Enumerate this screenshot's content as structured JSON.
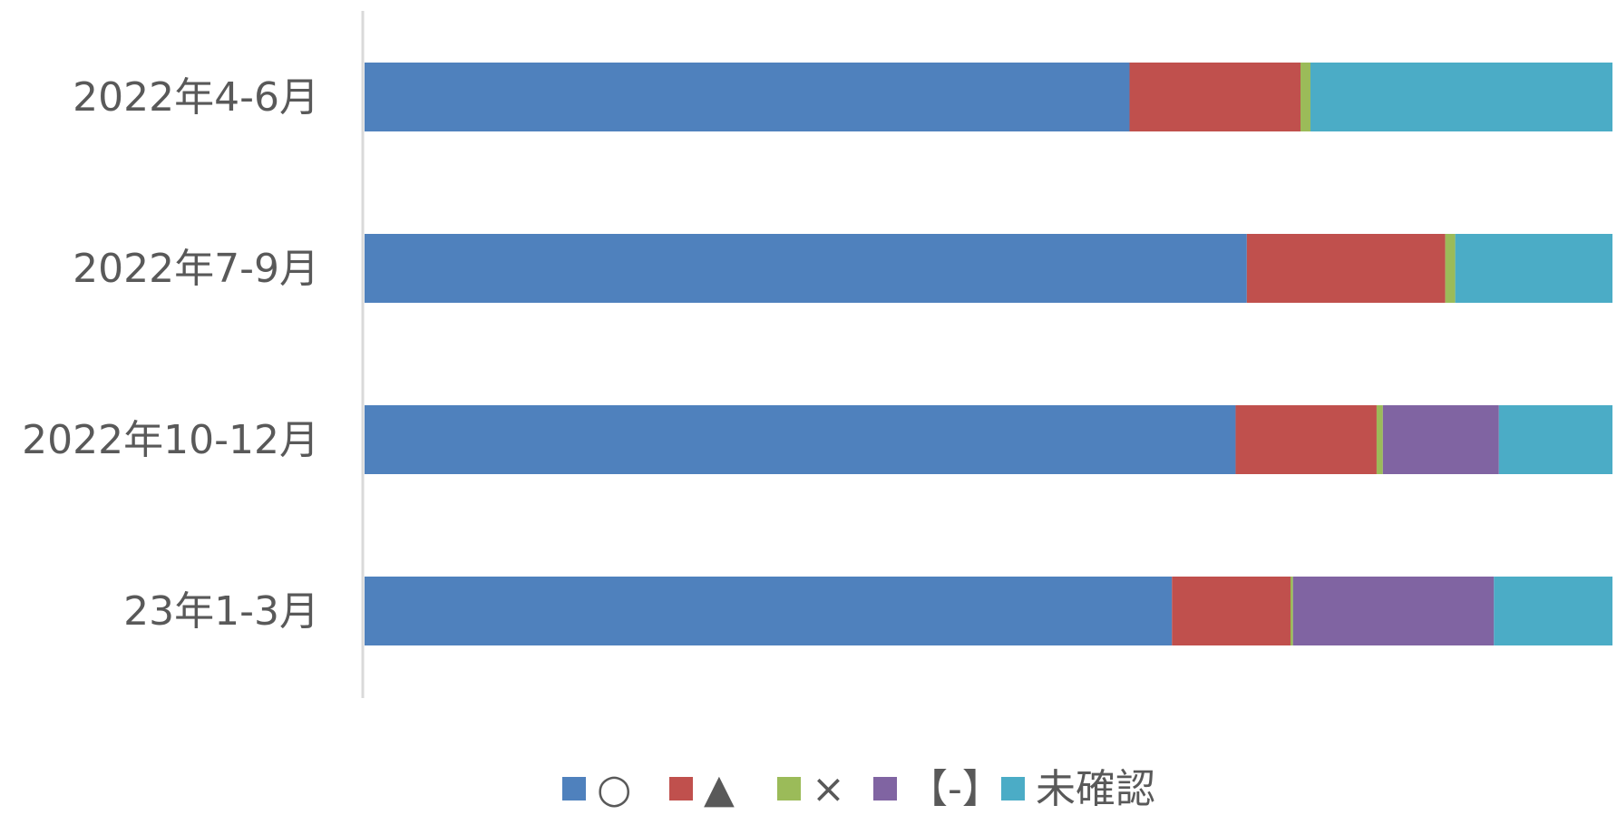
{
  "chart_data": {
    "type": "bar",
    "orientation": "horizontal",
    "stacked": "100%",
    "categories": [
      "2022年4-6月",
      "2022年7-9月",
      "2022年10-12月",
      "23年1-3月"
    ],
    "series": [
      {
        "name": "○",
        "color": "#4F81BD",
        "values": [
          61.3,
          70.7,
          69.8,
          64.7
        ]
      },
      {
        "name": "▲",
        "color": "#C0504D",
        "values": [
          13.7,
          15.9,
          11.3,
          9.5
        ]
      },
      {
        "name": "×",
        "color": "#9BBB59",
        "values": [
          0.8,
          0.8,
          0.5,
          0.2
        ]
      },
      {
        "name": "【-】",
        "color": "#8064A2",
        "values": [
          0.0,
          0.0,
          9.3,
          16.1
        ]
      },
      {
        "name": "未確認",
        "color": "#4BACC6",
        "values": [
          24.2,
          12.6,
          9.1,
          9.5
        ]
      }
    ],
    "xlim": [
      0,
      100
    ],
    "grid": false,
    "legend_position": "bottom",
    "axis_color": "#D9D9D9",
    "label_color": "#595959"
  }
}
